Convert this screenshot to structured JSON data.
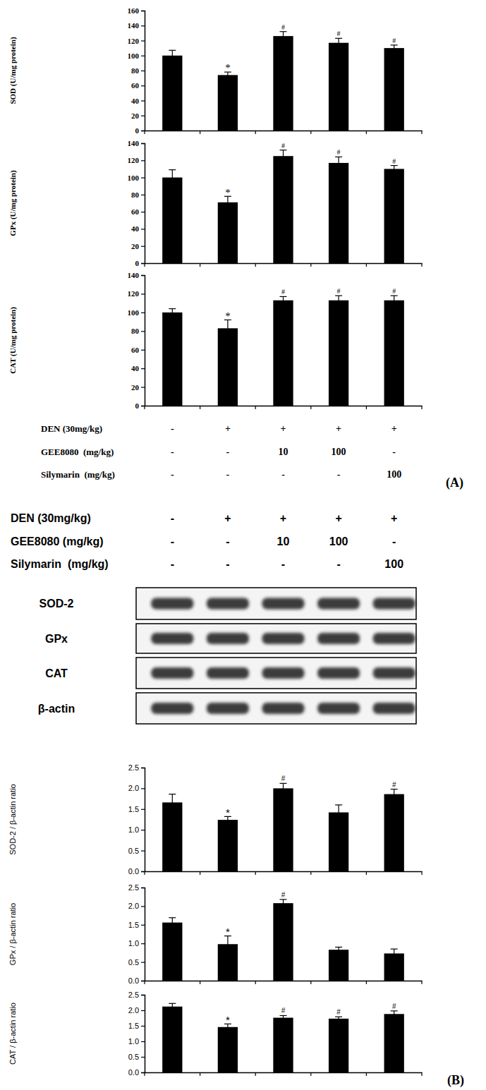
{
  "chart_data": [
    {
      "type": "bar",
      "y_label": "SOD (U/mg protein)",
      "categories": [
        null,
        null,
        null,
        null,
        null
      ],
      "values": [
        100,
        74,
        126,
        117,
        110
      ],
      "errors": [
        7,
        4,
        6,
        6,
        4
      ],
      "annotations": [
        null,
        "*",
        "#",
        "#",
        "#"
      ],
      "color": "#000000",
      "ylim": [
        0,
        160
      ],
      "yticks": [
        0,
        20,
        40,
        60,
        80,
        100,
        120,
        140,
        160
      ]
    },
    {
      "type": "bar",
      "y_label": "GPx (U/mg protein)",
      "categories": [
        null,
        null,
        null,
        null,
        null
      ],
      "values": [
        100,
        71,
        125,
        117,
        110
      ],
      "errors": [
        9,
        7,
        7,
        7,
        4
      ],
      "annotations": [
        null,
        "*",
        "#",
        "#",
        "#"
      ],
      "color": "#000000",
      "ylim": [
        0,
        140
      ],
      "yticks": [
        0,
        20,
        40,
        60,
        80,
        100,
        120,
        140
      ]
    },
    {
      "type": "bar",
      "y_label": "CAT (U/mg protein)",
      "categories": [
        null,
        null,
        null,
        null,
        null
      ],
      "values": [
        100,
        83,
        113,
        113,
        113
      ],
      "errors": [
        4,
        9,
        4,
        5,
        5
      ],
      "annotations": [
        null,
        "*",
        "#",
        "#",
        "#"
      ],
      "color": "#000000",
      "ylim": [
        0,
        140
      ],
      "yticks": [
        0,
        20,
        40,
        60,
        80,
        100,
        120,
        140
      ]
    },
    {
      "type": "bar",
      "y_label": "SOD-2 / β-actin ratio",
      "categories": [
        null,
        null,
        null,
        null,
        null
      ],
      "values": [
        1.66,
        1.24,
        2.0,
        1.42,
        1.86
      ],
      "errors": [
        0.2,
        0.08,
        0.12,
        0.18,
        0.12
      ],
      "annotations": [
        null,
        "*",
        "#",
        null,
        "#"
      ],
      "color": "#000000",
      "ylim": [
        0,
        2.5
      ],
      "yticks": [
        {
          "value": 0,
          "label": "0.0"
        },
        {
          "value": 0.5,
          "label": "0.5"
        },
        {
          "value": 1,
          "label": "1.0"
        },
        {
          "value": 1.5,
          "label": "1.5"
        },
        {
          "value": 2,
          "label": "2.0"
        },
        {
          "value": 2.5,
          "label": "2.5"
        }
      ]
    },
    {
      "type": "bar",
      "y_label": "GPx / β-actin ratio",
      "categories": [
        null,
        null,
        null,
        null,
        null
      ],
      "values": [
        1.56,
        0.98,
        2.08,
        0.83,
        0.73
      ],
      "errors": [
        0.13,
        0.22,
        0.1,
        0.07,
        0.12
      ],
      "annotations": [
        null,
        "*",
        "#",
        null,
        null
      ],
      "color": "#000000",
      "ylim": [
        0,
        2.5
      ],
      "yticks": [
        {
          "value": 0,
          "label": "0.0"
        },
        {
          "value": 0.5,
          "label": "0.5"
        },
        {
          "value": 1,
          "label": "1.0"
        },
        {
          "value": 1.5,
          "label": "1.5"
        },
        {
          "value": 2,
          "label": "2.0"
        },
        {
          "value": 2.5,
          "label": "2.5"
        }
      ]
    },
    {
      "type": "bar",
      "y_label": "CAT / β-actin ratio",
      "categories": [
        null,
        null,
        null,
        null,
        null
      ],
      "values": [
        2.12,
        1.46,
        1.76,
        1.73,
        1.88
      ],
      "errors": [
        0.1,
        0.1,
        0.07,
        0.06,
        0.1
      ],
      "annotations": [
        null,
        "*",
        "#",
        "#",
        "#"
      ],
      "color": "#000000",
      "ylim": [
        0,
        2.5
      ],
      "yticks": [
        {
          "value": 0,
          "label": "0.0"
        },
        {
          "value": 0.5,
          "label": "0.5"
        },
        {
          "value": 1,
          "label": "1.0"
        },
        {
          "value": 1.5,
          "label": "1.5"
        },
        {
          "value": 2,
          "label": "2.0"
        },
        {
          "value": 2.5,
          "label": "2.5"
        }
      ]
    }
  ],
  "panels": [
    {
      "label": "(A)",
      "treatments": [
        {
          "label": "DEN (30mg/kg)",
          "values": [
            "-",
            "+",
            "+",
            "+",
            "+"
          ]
        },
        {
          "label": "GEE8080  (mg/kg)",
          "values": [
            "-",
            "-",
            "10",
            "100",
            "-"
          ]
        },
        {
          "label": "Silymarin  (mg/kg)",
          "values": [
            "-",
            "-",
            "-",
            "-",
            "100"
          ]
        }
      ]
    },
    {
      "label": "(B)",
      "treatments": [
        {
          "label": "DEN (30mg/kg)",
          "values": [
            "-",
            "+",
            "+",
            "+",
            "+"
          ]
        },
        {
          "label": "GEE8080 (mg/kg)",
          "values": [
            "-",
            "-",
            "10",
            "100",
            "-"
          ]
        },
        {
          "label": "Silymarin  (mg/kg)",
          "values": [
            "-",
            "-",
            "-",
            "-",
            "100"
          ]
        }
      ],
      "blot_labels": [
        "SOD-2",
        "GPx",
        "CAT",
        "β-actin"
      ]
    }
  ]
}
